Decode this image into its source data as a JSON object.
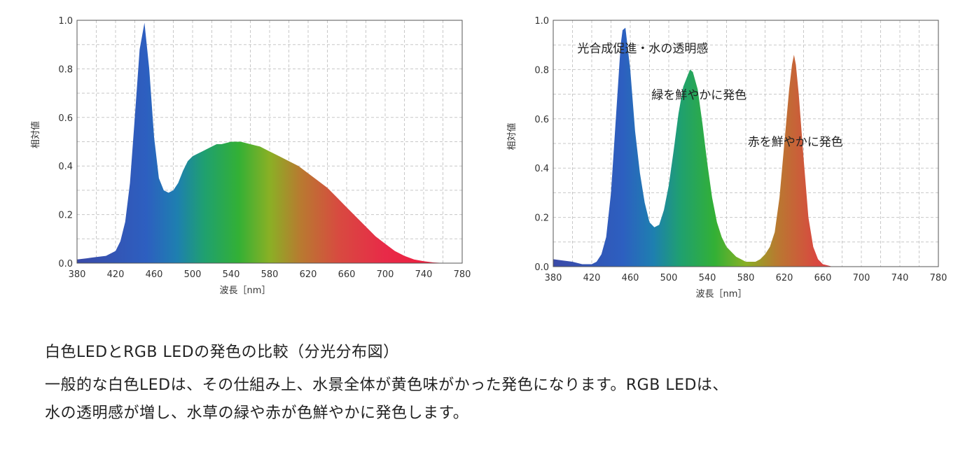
{
  "chart_data": [
    {
      "type": "area",
      "xlabel": "波長［nm］",
      "ylabel": "相対値",
      "xlim": [
        380,
        780
      ],
      "ylim": [
        0,
        1.0
      ],
      "x_ticks": [
        "380",
        "420",
        "460",
        "500",
        "540",
        "580",
        "620",
        "660",
        "700",
        "740",
        "780"
      ],
      "y_ticks": [
        "0.0",
        "0.2",
        "0.4",
        "0.6",
        "0.8",
        "1.0"
      ],
      "grid": true,
      "fill": "spectrum-gradient",
      "annotations": [],
      "x": [
        380,
        390,
        400,
        410,
        420,
        425,
        430,
        435,
        440,
        445,
        450,
        455,
        460,
        465,
        470,
        475,
        480,
        485,
        490,
        495,
        500,
        505,
        510,
        515,
        520,
        525,
        530,
        535,
        540,
        545,
        550,
        555,
        560,
        565,
        570,
        575,
        580,
        590,
        600,
        610,
        620,
        630,
        640,
        650,
        660,
        670,
        680,
        690,
        700,
        710,
        720,
        730,
        740,
        750,
        760,
        770,
        780
      ],
      "values": [
        0.015,
        0.02,
        0.025,
        0.03,
        0.05,
        0.09,
        0.17,
        0.33,
        0.6,
        0.88,
        0.99,
        0.8,
        0.52,
        0.35,
        0.3,
        0.29,
        0.3,
        0.33,
        0.38,
        0.42,
        0.44,
        0.45,
        0.46,
        0.47,
        0.48,
        0.49,
        0.49,
        0.495,
        0.5,
        0.5,
        0.5,
        0.495,
        0.49,
        0.485,
        0.48,
        0.47,
        0.46,
        0.44,
        0.42,
        0.4,
        0.37,
        0.34,
        0.31,
        0.27,
        0.23,
        0.19,
        0.15,
        0.11,
        0.08,
        0.05,
        0.03,
        0.015,
        0.008,
        0.003,
        0.001,
        0.0005,
        0.0
      ]
    },
    {
      "type": "area",
      "xlabel": "波長［nm］",
      "ylabel": "相対値",
      "xlim": [
        380,
        780
      ],
      "ylim": [
        0,
        1.0
      ],
      "x_ticks": [
        "380",
        "420",
        "460",
        "500",
        "540",
        "580",
        "620",
        "660",
        "700",
        "740",
        "780"
      ],
      "y_ticks": [
        "0.0",
        "0.2",
        "0.4",
        "0.6",
        "0.8",
        "1.0"
      ],
      "grid": true,
      "fill": "spectrum-gradient",
      "annotations": [
        {
          "text": "光合成促進・水の透明感",
          "x": 405,
          "y": 0.87
        },
        {
          "text": "緑を鮮やかに発色",
          "x": 482,
          "y": 0.68
        },
        {
          "text": "赤を鮮やかに発色",
          "x": 582,
          "y": 0.49
        }
      ],
      "x": [
        380,
        390,
        400,
        410,
        420,
        425,
        430,
        435,
        440,
        445,
        450,
        452,
        455,
        460,
        465,
        470,
        475,
        480,
        485,
        490,
        495,
        500,
        505,
        510,
        515,
        520,
        522,
        525,
        530,
        535,
        540,
        545,
        550,
        555,
        560,
        565,
        570,
        575,
        580,
        585,
        590,
        595,
        600,
        605,
        610,
        615,
        620,
        625,
        628,
        630,
        632,
        635,
        640,
        645,
        650,
        655,
        660,
        670,
        680,
        700,
        720,
        740,
        760,
        780
      ],
      "values": [
        0.03,
        0.025,
        0.02,
        0.01,
        0.01,
        0.02,
        0.05,
        0.12,
        0.3,
        0.6,
        0.9,
        0.96,
        0.97,
        0.8,
        0.55,
        0.38,
        0.26,
        0.18,
        0.16,
        0.17,
        0.23,
        0.33,
        0.47,
        0.62,
        0.73,
        0.78,
        0.8,
        0.79,
        0.72,
        0.58,
        0.42,
        0.28,
        0.18,
        0.12,
        0.08,
        0.06,
        0.04,
        0.03,
        0.02,
        0.02,
        0.02,
        0.03,
        0.05,
        0.08,
        0.14,
        0.28,
        0.5,
        0.72,
        0.82,
        0.86,
        0.82,
        0.7,
        0.44,
        0.2,
        0.08,
        0.03,
        0.01,
        0.0,
        0.0,
        0.0,
        0.0,
        0.0,
        0.0,
        0.0
      ]
    }
  ],
  "caption": {
    "line1": "白色LEDとRGB LEDの発色の比較（分光分布図）",
    "line2": "一般的な白色LEDは、その仕組み上、水景全体が黄色味がかった発色になります。RGB LEDは、",
    "line3": "水の透明感が増し、水草の緑や赤が色鮮やかに発色します。"
  }
}
